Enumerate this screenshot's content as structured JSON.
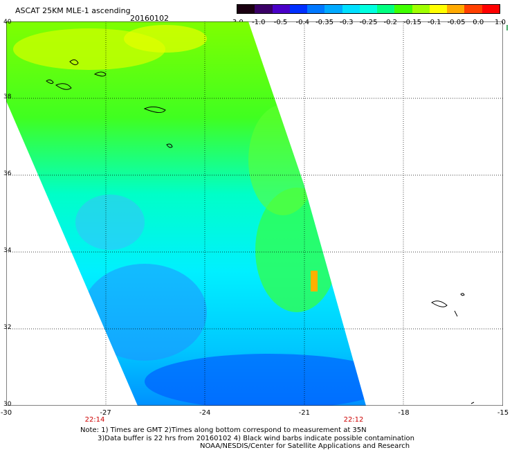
{
  "header": {
    "title": "ASCAT 25KM MLE-1 ascending",
    "date": "20160102"
  },
  "colorbar": {
    "ticks": [
      "-3.0",
      "-1.0",
      "-0.5",
      "-0.4",
      "-0.35",
      "-0.3",
      "-0.25",
      "-0.2",
      "-0.15",
      "-0.1",
      "-0.05",
      "0.0",
      "1.0"
    ],
    "colors": [
      "#1a0010",
      "#3a0066",
      "#4a00c8",
      "#0030ff",
      "#0078ff",
      "#00aaff",
      "#00e0ff",
      "#00ffe0",
      "#00ff80",
      "#40ff00",
      "#a0ff00",
      "#ffff00",
      "#ffaa00",
      "#ff4000",
      "#ff0000"
    ]
  },
  "map": {
    "lat_labels": [
      "40",
      "38",
      "36",
      "34",
      "32",
      "30"
    ],
    "lon_labels": [
      "-30",
      "-27",
      "-24",
      "-21",
      "-18",
      "-15"
    ],
    "lat_range": [
      30,
      40
    ],
    "lon_range": [
      -30,
      -15
    ],
    "times": [
      "22:14",
      "22:12"
    ]
  },
  "footer": {
    "line1": "Note: 1) Times are GMT 2)Times along bottom correspond to measurement at 35N",
    "line2": "3)Data buffer is 22 hrs from 20160102 4) Black wind barbs indicate possible contamination",
    "line3": "NOAA/NESDIS/Center for Satellite Applications and Research"
  }
}
